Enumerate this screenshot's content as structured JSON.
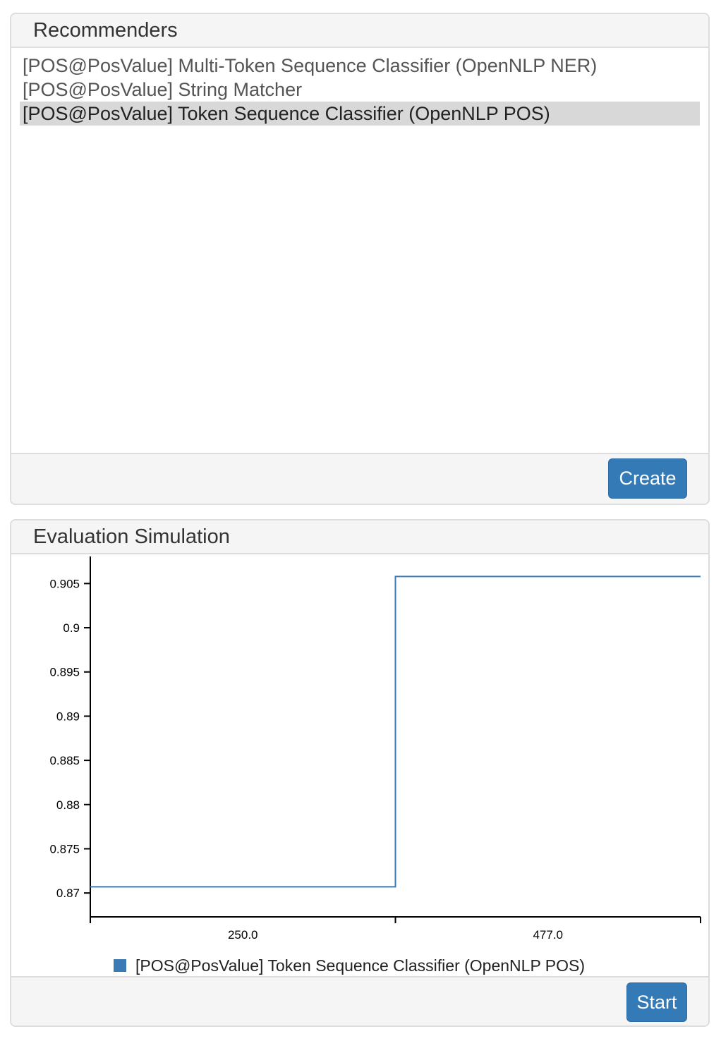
{
  "recommenders": {
    "title": "Recommenders",
    "items": [
      {
        "label": "[POS@PosValue] Multi-Token Sequence Classifier (OpenNLP NER)",
        "selected": false
      },
      {
        "label": "[POS@PosValue] String Matcher",
        "selected": false
      },
      {
        "label": "[POS@PosValue] Token Sequence Classifier (OpenNLP POS)",
        "selected": true
      }
    ],
    "create_label": "Create"
  },
  "evaluation": {
    "title": "Evaluation Simulation",
    "start_label": "Start",
    "legend_label": "[POS@PosValue] Token Sequence Classifier (OpenNLP POS)"
  },
  "colors": {
    "primary_button": "#337ab7",
    "series_line": "#3a7ab5",
    "selected_row": "#d8d8d8"
  },
  "chart_data": {
    "type": "line",
    "step": true,
    "x_tick_labels": [
      "250.0",
      "477.0"
    ],
    "y_ticks": [
      0.905,
      0.9,
      0.895,
      0.89,
      0.885,
      0.88,
      0.875,
      0.87
    ],
    "y_tick_labels": [
      "0.905",
      "0.9",
      "0.895",
      "0.89",
      "0.885",
      "0.88",
      "0.875",
      "0.87"
    ],
    "ylim": [
      0.8673,
      0.9083
    ],
    "series": [
      {
        "name": "[POS@PosValue] Token Sequence Classifier (OpenNLP POS)",
        "values": [
          0.8707,
          0.9058
        ]
      }
    ],
    "grid": false,
    "legend": "bottom"
  }
}
